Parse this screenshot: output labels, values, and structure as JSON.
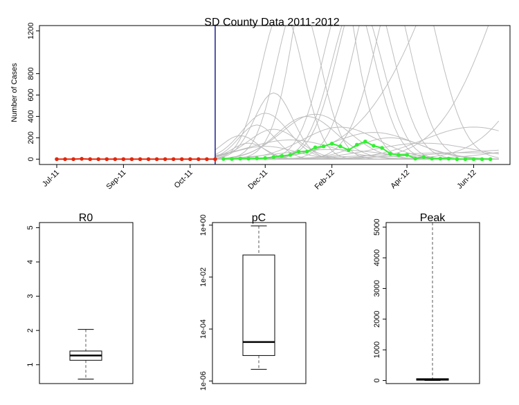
{
  "chart_data": [
    {
      "type": "line",
      "title": "SD County Data 2011-2012",
      "xlabel": "",
      "ylabel": "Number of Cases",
      "ylim": [
        -50,
        1250
      ],
      "y_ticks": [
        0,
        200,
        400,
        600,
        800,
        1200
      ],
      "x_tick_labels": [
        "Jul-11",
        "Sep-11",
        "Oct-11",
        "Dec-11",
        "Feb-12",
        "Apr-12",
        "Jun-12"
      ],
      "grid": false,
      "legend": "none",
      "colors": {
        "observed_fit": "#e0280e",
        "observed_forecast": "#32f032",
        "simulations": "#bdbdbd",
        "cutoff_line": "#1c1c8c"
      },
      "cutoff_week": 19,
      "series": [
        {
          "values": [
            0,
            0,
            0,
            3,
            0,
            0,
            0,
            0,
            0,
            0,
            0,
            0,
            0,
            0,
            0,
            0,
            0,
            0,
            0,
            0
          ]
        },
        {
          "start_week": 20,
          "values": [
            2,
            2,
            5,
            5,
            8,
            10,
            20,
            30,
            40,
            70,
            70,
            110,
            120,
            145,
            120,
            85,
            135,
            165,
            125,
            105,
            50,
            40,
            40,
            5,
            20,
            5,
            5,
            5,
            0,
            0,
            0,
            0,
            0
          ]
        }
      ],
      "simulation_trajectories": [
        {
          "peak_week": 22,
          "peak": 220,
          "width": 2.2
        },
        {
          "peak_week": 23,
          "peak": 150,
          "width": 2.0
        },
        {
          "peak_week": 24,
          "peak": 320,
          "width": 2.2
        },
        {
          "peak_week": 25,
          "peak": 430,
          "width": 2.8
        },
        {
          "peak_week": 25,
          "peak": 120,
          "width": 3.5
        },
        {
          "peak_week": 26,
          "peak": 620,
          "width": 2.3
        },
        {
          "peak_week": 26,
          "peak": 280,
          "width": 3.0
        },
        {
          "peak_week": 27,
          "peak": 1400,
          "width": 2.5
        },
        {
          "peak_week": 28,
          "peak": 180,
          "width": 5.0
        },
        {
          "peak_week": 29,
          "peak": 1500,
          "width": 2.6
        },
        {
          "peak_week": 30,
          "peak": 400,
          "width": 3.5
        },
        {
          "peak_week": 31,
          "peak": 420,
          "width": 4.0
        },
        {
          "peak_week": 32,
          "peak": 2500,
          "width": 3.0
        },
        {
          "peak_week": 33,
          "peak": 90,
          "width": 6.0
        },
        {
          "peak_week": 34,
          "peak": 300,
          "width": 4.5
        },
        {
          "peak_week": 35,
          "peak": 1600,
          "width": 3.0
        },
        {
          "peak_week": 36,
          "peak": 1500,
          "width": 3.0
        },
        {
          "peak_week": 37,
          "peak": 1700,
          "width": 3.2
        },
        {
          "peak_week": 38,
          "peak": 250,
          "width": 5.0
        },
        {
          "peak_week": 39,
          "peak": 1800,
          "width": 3.2
        },
        {
          "peak_week": 40,
          "peak": 200,
          "width": 4.0
        },
        {
          "peak_week": 42,
          "peak": 1900,
          "width": 3.5
        },
        {
          "peak_week": 44,
          "peak": 150,
          "width": 6.0
        },
        {
          "peak_week": 48,
          "peak": 60,
          "width": 10.0
        },
        {
          "peak_week": 55,
          "peak": 3000,
          "width": 9.0
        },
        {
          "peak_week": 60,
          "peak": 2500,
          "width": 7.0
        },
        {
          "peak_week": 66,
          "peak": 2000,
          "width": 7.0
        },
        {
          "peak_week": 50,
          "peak": 300,
          "width": 6.0
        },
        {
          "peak_week": 65,
          "peak": 200,
          "width": 8.0
        },
        {
          "peak_week": 60,
          "peak": 100,
          "width": 12.0
        }
      ]
    },
    {
      "type": "box",
      "title": "R0",
      "y_ticks": [
        1,
        2,
        3,
        4,
        5
      ],
      "y_tick_labels": [
        "1",
        "2",
        "3",
        "4",
        "5"
      ],
      "ylim": [
        0.45,
        5.15
      ],
      "scale": "linear",
      "stats": {
        "whisker_low": 0.58,
        "q1": 1.13,
        "median": 1.27,
        "q3": 1.4,
        "whisker_high": 2.03
      }
    },
    {
      "type": "box",
      "title": "pC",
      "scale": "log10",
      "y_ticks": [
        1e-06,
        0.0001,
        0.01,
        1
      ],
      "y_tick_labels": [
        "1e-06",
        "1e-04",
        "1e-02",
        "1e+00"
      ],
      "ylim_log10": [
        -6.1,
        0.1
      ],
      "stats_log10": {
        "whisker_low": -5.55,
        "q1": -5.02,
        "median": -4.5,
        "q3": -1.15,
        "whisker_high": -0.03
      }
    },
    {
      "type": "box",
      "title": "Peak",
      "y_ticks": [
        0,
        1000,
        2000,
        3000,
        4000,
        5000
      ],
      "y_tick_labels": [
        "0",
        "1000",
        "2000",
        "3000",
        "4000",
        "5000"
      ],
      "ylim": [
        -100,
        5150
      ],
      "scale": "linear",
      "stats": {
        "whisker_low": 0,
        "q1": 10,
        "median": 30,
        "q3": 60,
        "whisker_high": 5150
      }
    }
  ]
}
